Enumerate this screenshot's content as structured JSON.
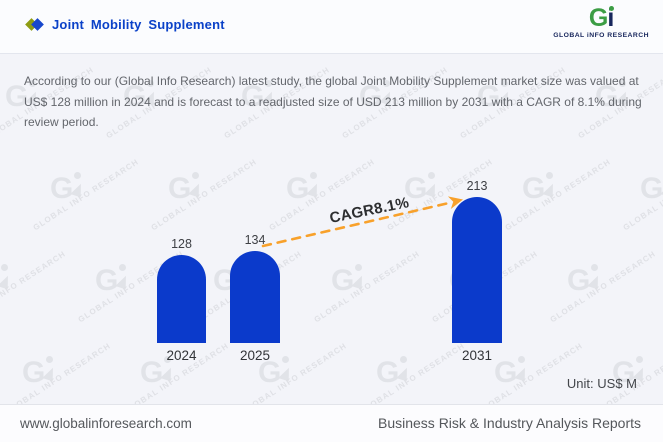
{
  "header": {
    "title": "Joint Mobility Supplement",
    "logo": {
      "mark_g": "G",
      "mark_i": "i",
      "name": "GLOBAL iNFO RESEARCH"
    }
  },
  "description": "According to our (Global Info Research) latest study, the global Joint Mobility Supplement market size was valued at US$ 128 million in 2024 and is forecast to a readjusted size of USD 213 million by 2031 with a CAGR of 8.1% during review period.",
  "chart_data": {
    "type": "bar",
    "categories": [
      "2024",
      "2025",
      "2031"
    ],
    "values": [
      128,
      134,
      213
    ],
    "title": "Joint Mobility Supplement market size",
    "xlabel": "",
    "ylabel": "",
    "ylim": [
      0,
      230
    ],
    "grid": false,
    "legend": false,
    "annotation": "CAGR8.1%",
    "unit_label": "Unit: US$ M",
    "bar_color": "#0B3ACB",
    "arrow_color": "#F8A12B"
  },
  "watermark": {
    "glyph": "G",
    "text": "GLOBAL INFO RESEARCH"
  },
  "footer": {
    "left": "www.globalinforesearch.com",
    "right": "Business Risk & Industry Analysis Reports"
  },
  "colors": {
    "title_blue": "#0A41C8",
    "bar_blue": "#0B3ACB",
    "arrow_orange": "#F8A12B",
    "logo_green": "#3C9D44",
    "logo_navy": "#17265C",
    "page_bg": "#F3F4F9"
  }
}
